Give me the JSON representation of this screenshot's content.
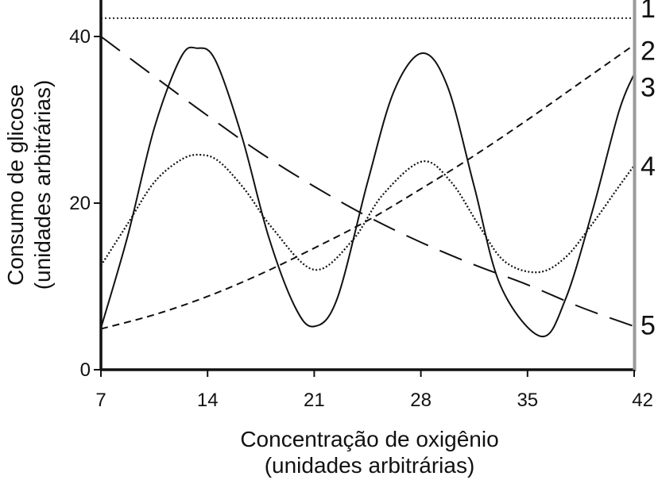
{
  "chart_data": {
    "type": "line",
    "xlabel": [
      "Concentração de oxigênio",
      "(unidades arbitrárias)"
    ],
    "ylabel": [
      "Consumo de glicose",
      "(unidades arbitrárias)"
    ],
    "xlim": [
      7,
      42
    ],
    "ylim": [
      0,
      45
    ],
    "xticks": [
      "7",
      "14",
      "21",
      "28",
      "35",
      "42"
    ],
    "yticks": [
      "0",
      "20",
      "40"
    ],
    "grid": false,
    "legend": "none",
    "series": [
      {
        "label": "1",
        "style": "fine-dotted",
        "values_x": [
          7,
          42
        ],
        "values_y": [
          42.2,
          42.2
        ]
      },
      {
        "label": "2",
        "style": "short-dash",
        "values_x": [
          7,
          10.5,
          14,
          17.5,
          21,
          24.5,
          28,
          31.5,
          35,
          38.5,
          42
        ],
        "values_y": [
          4.9,
          6.6,
          8.8,
          11.5,
          14.6,
          17.9,
          21.7,
          25.7,
          30,
          34.5,
          39
        ]
      },
      {
        "label": "3",
        "style": "solid",
        "values_x": [
          7,
          8.75,
          10.5,
          12.25,
          13.3,
          14.5,
          16.25,
          18,
          19.75,
          21,
          22.5,
          24.5,
          26.25,
          28.1,
          29.75,
          31.5,
          33.25,
          35.9,
          37.5,
          39.25,
          41,
          42
        ],
        "values_y": [
          5,
          16,
          29,
          37.5,
          38.6,
          37.2,
          28,
          16,
          7.5,
          5.2,
          8.5,
          22.5,
          33.5,
          38,
          34,
          22,
          10,
          4,
          8.5,
          19,
          31,
          35.5
        ]
      },
      {
        "label": "4",
        "style": "dotted",
        "values_x": [
          7,
          8.75,
          10.5,
          12.25,
          13.5,
          14.75,
          16.5,
          18.25,
          21,
          23.5,
          25.5,
          28.1,
          30,
          31.75,
          33.5,
          35.7,
          37.5,
          39.25,
          41,
          42
        ],
        "values_y": [
          12.5,
          17.5,
          22.5,
          25.2,
          25.8,
          25,
          21.5,
          17,
          12,
          15.5,
          21,
          25,
          22.5,
          17.5,
          13,
          11.7,
          13.5,
          17.5,
          22,
          24.5
        ]
      },
      {
        "label": "5",
        "style": "long-dash",
        "values_x": [
          7,
          10.5,
          14,
          17.5,
          21,
          24.5,
          28,
          31.5,
          35,
          38.5,
          42
        ],
        "values_y": [
          40,
          35.2,
          30.5,
          26,
          22,
          18.4,
          15.3,
          12.6,
          10.2,
          7.5,
          5.2
        ]
      }
    ]
  }
}
